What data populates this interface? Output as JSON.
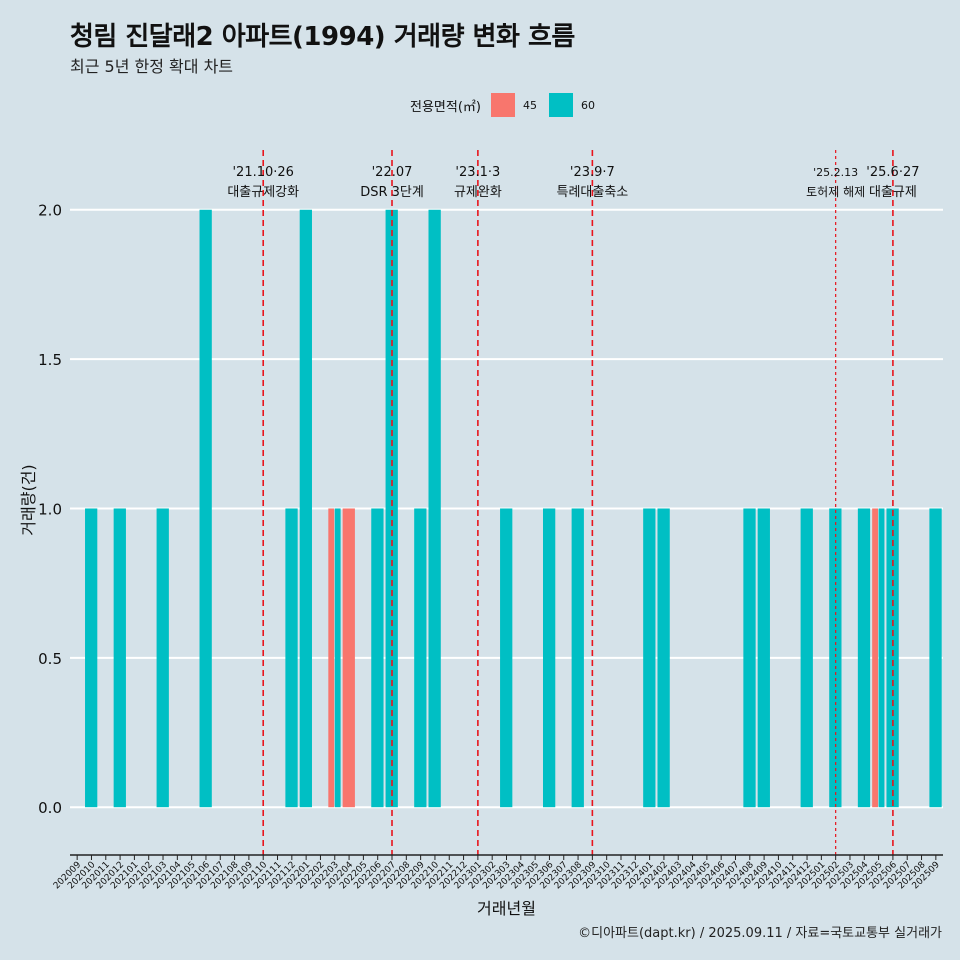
{
  "header": {
    "title": "청림 진달래2 아파트(1994) 거래량 변화 흐름",
    "subtitle": "최근 5년 한정 확대 차트"
  },
  "legend": {
    "title": "전용면적(㎡)",
    "items": [
      {
        "label": "45",
        "color": "#f8766d"
      },
      {
        "label": "60",
        "color": "#00bfc4"
      }
    ]
  },
  "caption": "©디아파트(dapt.kr) / 2025.09.11 / 자료=국토교통부 실거래가",
  "chart_data": {
    "type": "bar",
    "xlabel": "거래년월",
    "ylabel": "거래량(건)",
    "ylim": [
      -0.16,
      2.2
    ],
    "yticks": [
      0,
      0.5,
      1,
      1.5,
      2
    ],
    "ytick_labels": [
      "0.0",
      "0.5",
      "1.0",
      "1.5",
      "2.0"
    ],
    "categories": [
      "202009",
      "202010",
      "202011",
      "202012",
      "202101",
      "202102",
      "202103",
      "202104",
      "202105",
      "202106",
      "202107",
      "202108",
      "202109",
      "202110",
      "202111",
      "202112",
      "202201",
      "202202",
      "202203",
      "202204",
      "202205",
      "202206",
      "202207",
      "202208",
      "202209",
      "202210",
      "202211",
      "202212",
      "202301",
      "202302",
      "202303",
      "202304",
      "202305",
      "202306",
      "202307",
      "202308",
      "202309",
      "202310",
      "202311",
      "202312",
      "202401",
      "202402",
      "202403",
      "202404",
      "202405",
      "202406",
      "202407",
      "202408",
      "202409",
      "202410",
      "202411",
      "202412",
      "202501",
      "202502",
      "202503",
      "202504",
      "202505",
      "202506",
      "202507",
      "202508",
      "202509"
    ],
    "series": [
      {
        "name": "45",
        "color": "#f8766d",
        "points": [
          {
            "month": "202203",
            "value": 1
          },
          {
            "month": "202204",
            "value": 1
          },
          {
            "month": "202505",
            "value": 1
          }
        ]
      },
      {
        "name": "60",
        "color": "#00bfc4",
        "points": [
          {
            "month": "202010",
            "value": 1
          },
          {
            "month": "202012",
            "value": 1
          },
          {
            "month": "202103",
            "value": 1
          },
          {
            "month": "202106",
            "value": 2
          },
          {
            "month": "202112",
            "value": 1
          },
          {
            "month": "202201",
            "value": 2
          },
          {
            "month": "202203",
            "value": 1
          },
          {
            "month": "202206",
            "value": 1
          },
          {
            "month": "202207",
            "value": 2
          },
          {
            "month": "202209",
            "value": 1
          },
          {
            "month": "202210",
            "value": 2
          },
          {
            "month": "202303",
            "value": 1
          },
          {
            "month": "202306",
            "value": 1
          },
          {
            "month": "202308",
            "value": 1
          },
          {
            "month": "202401",
            "value": 1
          },
          {
            "month": "202402",
            "value": 1
          },
          {
            "month": "202408",
            "value": 1
          },
          {
            "month": "202409",
            "value": 1
          },
          {
            "month": "202412",
            "value": 1
          },
          {
            "month": "202502",
            "value": 1
          },
          {
            "month": "202504",
            "value": 1
          },
          {
            "month": "202505",
            "value": 1
          },
          {
            "month": "202506",
            "value": 1
          },
          {
            "month": "202509",
            "value": 1
          }
        ]
      }
    ],
    "annotations": [
      {
        "month": "202110",
        "date": "'21.10·26",
        "label": "대출규제강화",
        "style": "dashed"
      },
      {
        "month": "202207",
        "date": "'22.07",
        "label": "DSR 3단계",
        "style": "dashed"
      },
      {
        "month": "202301",
        "date": "'23.1·3",
        "label": "규제완화",
        "style": "dashed"
      },
      {
        "month": "202309",
        "date": "'23.9·7",
        "label": "특례대출축소",
        "style": "dashed"
      },
      {
        "month": "202502",
        "date": "'25.2.13",
        "label": "토허제 해제",
        "style": "dotted"
      },
      {
        "month": "202506",
        "date": "'25.6·27",
        "label": "대출규제",
        "style": "dashed"
      }
    ]
  }
}
